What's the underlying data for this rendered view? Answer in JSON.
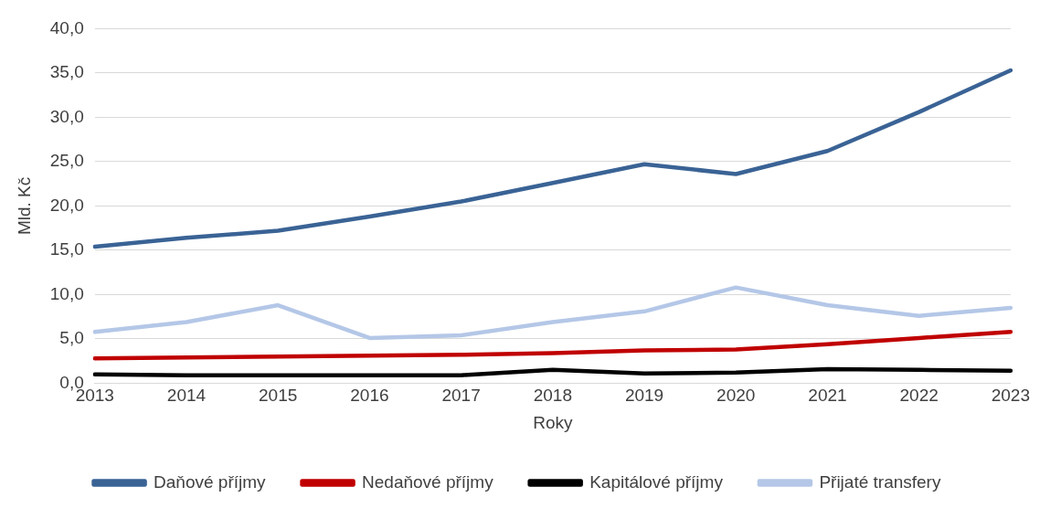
{
  "chart_data": {
    "type": "line",
    "xlabel": "Roky",
    "ylabel": "Mld. Kč",
    "categories": [
      "2013",
      "2014",
      "2015",
      "2016",
      "2017",
      "2018",
      "2019",
      "2020",
      "2021",
      "2022",
      "2023"
    ],
    "series": [
      {
        "name": "Daňové příjmy",
        "color": "#3a6395",
        "values": [
          15.4,
          16.4,
          17.2,
          18.8,
          20.5,
          22.6,
          24.7,
          23.6,
          26.2,
          30.6,
          35.3
        ]
      },
      {
        "name": "Nedaňové příjmy",
        "color": "#c00000",
        "values": [
          2.8,
          2.9,
          3.0,
          3.1,
          3.2,
          3.4,
          3.7,
          3.8,
          4.4,
          5.1,
          5.8
        ]
      },
      {
        "name": "Kapitálové příjmy",
        "color": "#000000",
        "values": [
          1.0,
          0.9,
          0.9,
          0.9,
          0.9,
          1.5,
          1.1,
          1.2,
          1.6,
          1.5,
          1.4
        ]
      },
      {
        "name": "Přijaté transfery",
        "color": "#b4c7e7",
        "values": [
          5.8,
          6.9,
          8.8,
          5.1,
          5.4,
          6.9,
          8.1,
          10.8,
          8.8,
          7.6,
          8.5
        ]
      }
    ],
    "ylim": [
      0,
      40
    ],
    "yticks": [
      {
        "value": 0,
        "label": "0,0"
      },
      {
        "value": 5,
        "label": "5,0"
      },
      {
        "value": 10,
        "label": "10,0"
      },
      {
        "value": 15,
        "label": "15,0"
      },
      {
        "value": 20,
        "label": "20,0"
      },
      {
        "value": 25,
        "label": "25,0"
      },
      {
        "value": 30,
        "label": "30,0"
      },
      {
        "value": 35,
        "label": "35,0"
      },
      {
        "value": 40,
        "label": "40,0"
      }
    ],
    "grid": "y",
    "legend": "bottom",
    "marker": "none",
    "line_style": "solid"
  }
}
